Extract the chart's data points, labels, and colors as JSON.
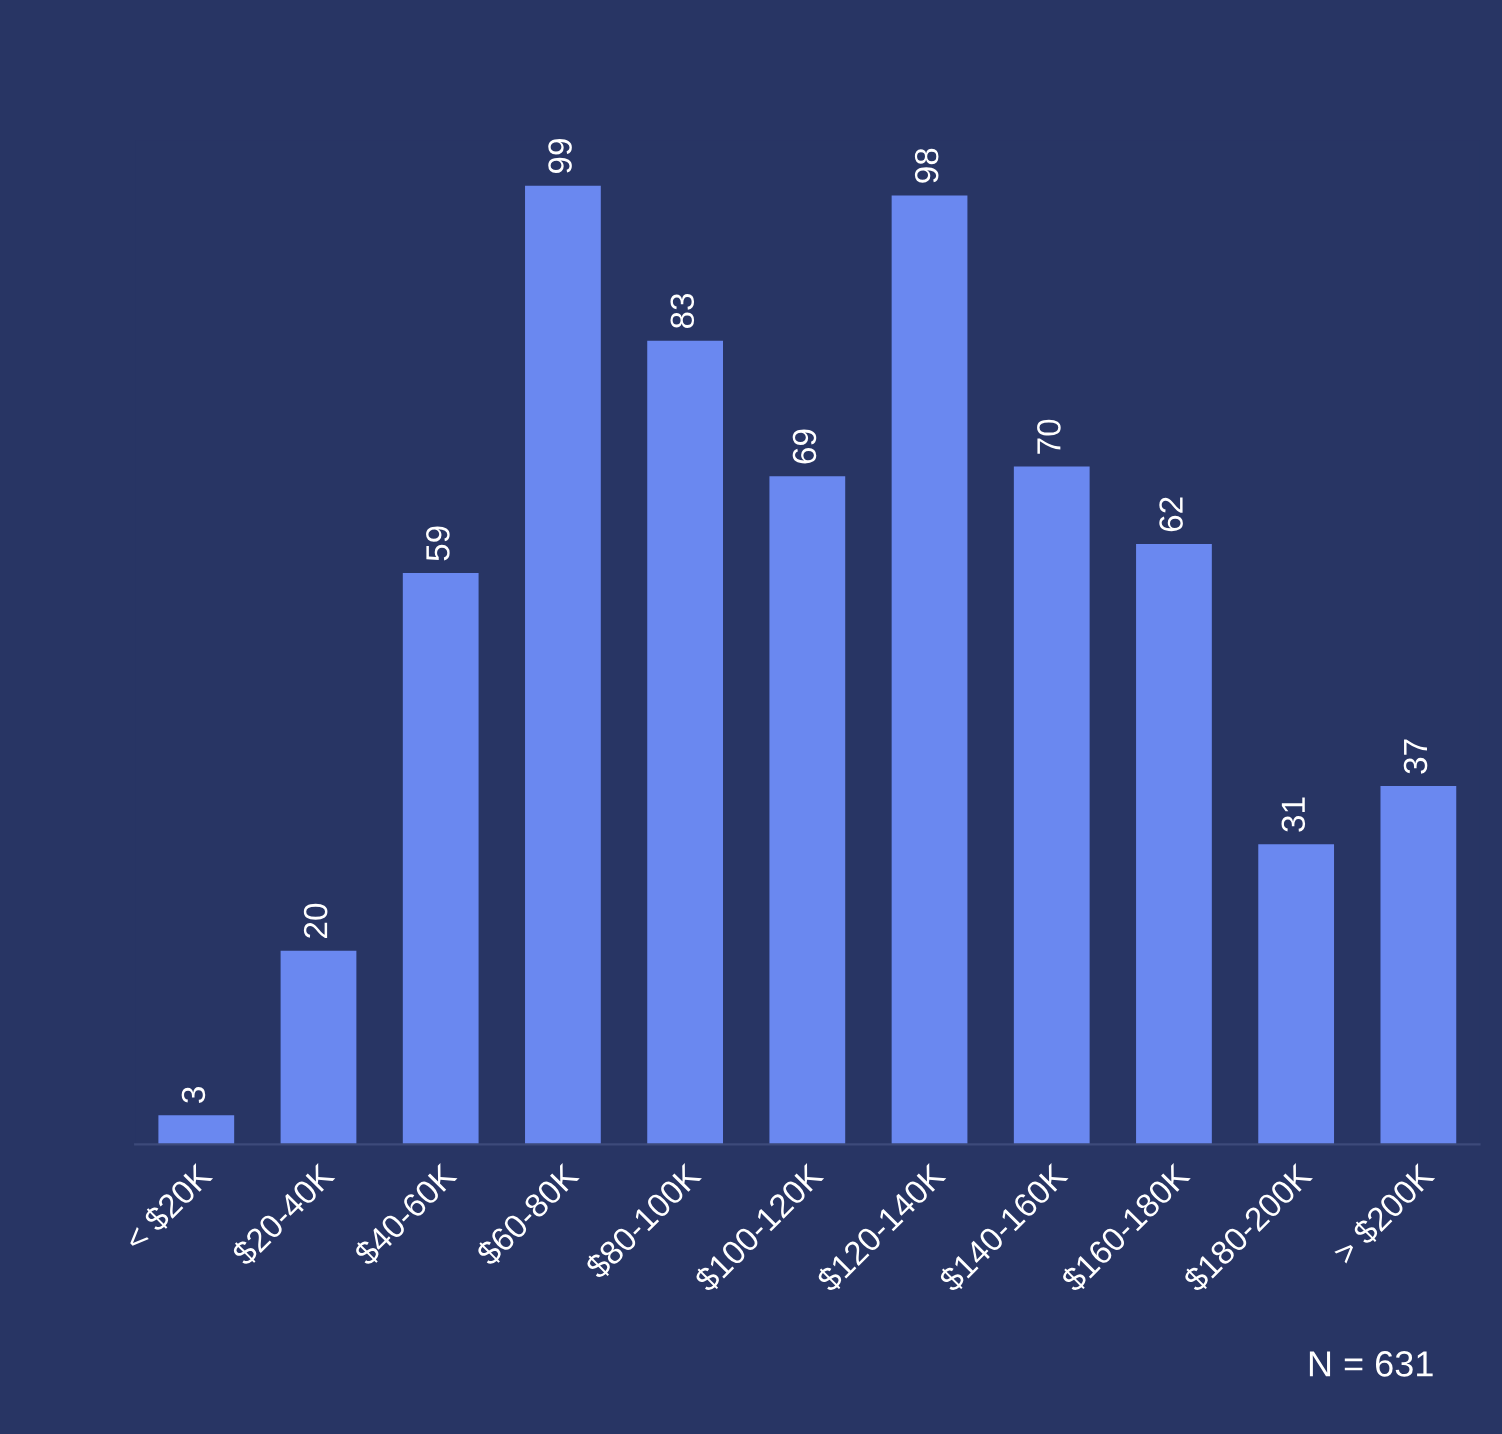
{
  "chart_data": {
    "type": "bar",
    "categories": [
      "< $20K",
      "$20-40K",
      "$40-60K",
      "$60-80K",
      "$80-100K",
      "$100-120K",
      "$120-140K",
      "$140-160K",
      "$160-180K",
      "$180-200K",
      "> $200K"
    ],
    "values": [
      3,
      20,
      59,
      99,
      83,
      69,
      98,
      70,
      62,
      31,
      37
    ],
    "color": "#6a88f0",
    "data_labels": true,
    "grid": false,
    "legend": false,
    "annotations": [
      "N = 631"
    ]
  }
}
